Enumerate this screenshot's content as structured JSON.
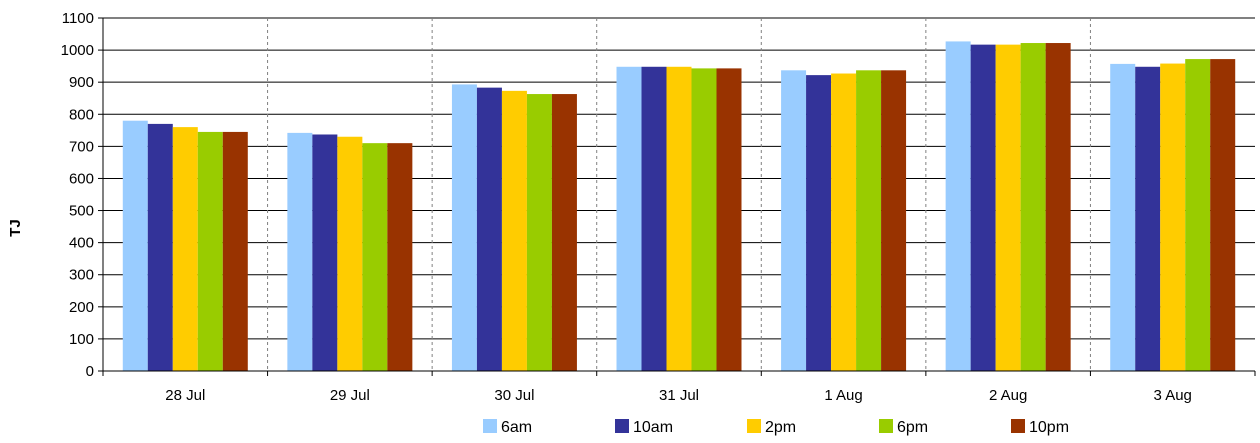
{
  "chart_data": {
    "type": "bar",
    "title": "",
    "xlabel": "",
    "ylabel": "TJ",
    "ylim": [
      0,
      1100
    ],
    "yticks": [
      0,
      100,
      200,
      300,
      400,
      500,
      600,
      700,
      800,
      900,
      1000,
      1100
    ],
    "grid": "horizontal major gridlines, dashed vertical separators between categories",
    "legend_position": "bottom",
    "categories": [
      "28 Jul",
      "29 Jul",
      "30 Jul",
      "31 Jul",
      "1 Aug",
      "2 Aug",
      "3 Aug"
    ],
    "series": [
      {
        "name": "6am",
        "color": "#99CCFF",
        "values": [
          780,
          742,
          893,
          948,
          937,
          1027,
          957
        ]
      },
      {
        "name": "10am",
        "color": "#333399",
        "values": [
          770,
          737,
          883,
          948,
          922,
          1017,
          948
        ]
      },
      {
        "name": "2pm",
        "color": "#FFCC00",
        "values": [
          760,
          730,
          873,
          948,
          927,
          1017,
          958
        ]
      },
      {
        "name": "6pm",
        "color": "#99CC00",
        "values": [
          745,
          710,
          863,
          943,
          937,
          1022,
          972
        ]
      },
      {
        "name": "10pm",
        "color": "#993300",
        "values": [
          745,
          710,
          863,
          943,
          937,
          1022,
          972
        ]
      }
    ]
  }
}
